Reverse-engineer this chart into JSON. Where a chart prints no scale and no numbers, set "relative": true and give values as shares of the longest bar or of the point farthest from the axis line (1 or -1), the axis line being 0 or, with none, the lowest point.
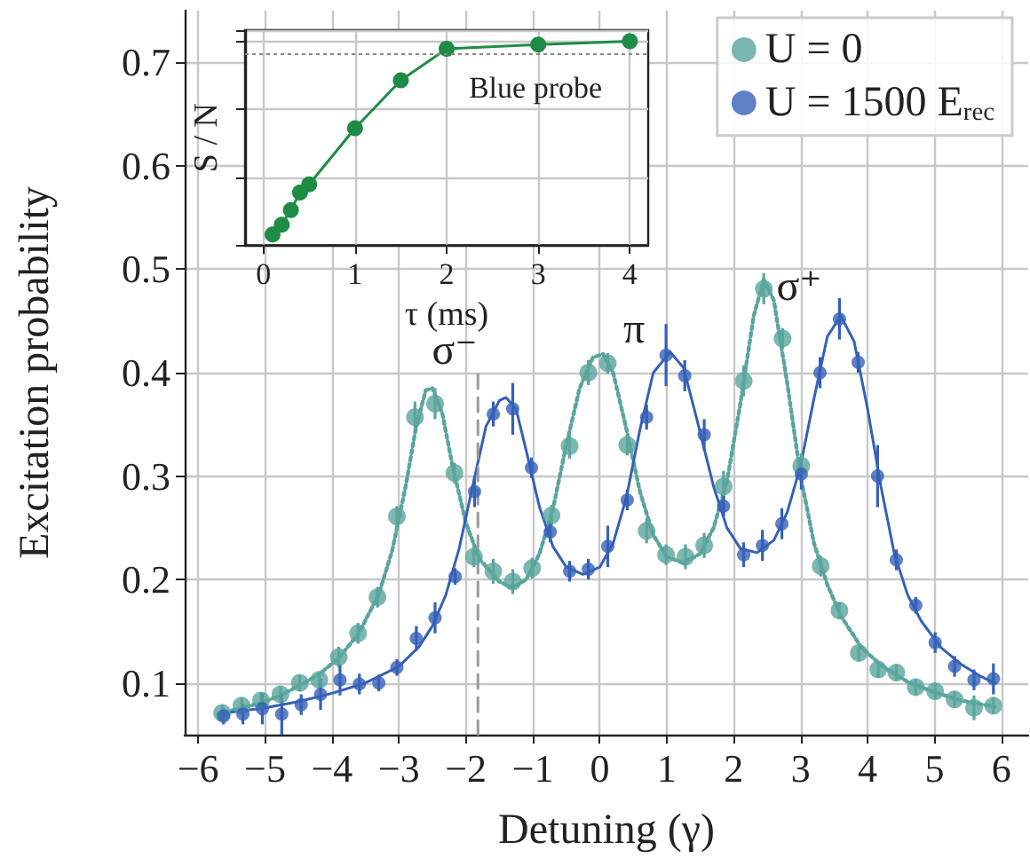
{
  "chart_data": [
    {
      "type": "scatter",
      "xlabel": "Detuning (γ)",
      "ylabel": "Excitation probability",
      "xlim": [
        -6.2,
        6.4
      ],
      "ylim": [
        0.05,
        0.75
      ],
      "xticks": [
        {
          "value": -6,
          "label": "−6"
        },
        {
          "value": -5,
          "label": "−5"
        },
        {
          "value": -4,
          "label": "−4"
        },
        {
          "value": -3,
          "label": "−3"
        },
        {
          "value": -2,
          "label": "−2"
        },
        {
          "value": -1,
          "label": "−1"
        },
        0,
        1,
        2,
        3,
        4,
        5,
        6
      ],
      "yticks": [
        0.1,
        0.2,
        0.3,
        0.4,
        0.5,
        0.6,
        0.7
      ],
      "grid": true,
      "legend": "top right",
      "marker": "circle",
      "annotations": [
        "σ⁻",
        "π",
        "σ⁺"
      ],
      "series": [
        {
          "name": "U = 0",
          "color": "#5aa59e",
          "x": [
            -5.64,
            -5.35,
            -5.06,
            -4.77,
            -4.48,
            -4.19,
            -3.9,
            -3.61,
            -3.32,
            -3.03,
            -2.76,
            -2.46,
            -2.17,
            -1.88,
            -1.59,
            -1.3,
            -1.01,
            -0.72,
            -0.45,
            -0.17,
            0.12,
            0.41,
            0.7,
            0.99,
            1.28,
            1.56,
            1.85,
            2.15,
            2.45,
            2.73,
            3.01,
            3.3,
            3.58,
            3.87,
            4.16,
            4.43,
            4.72,
            5.01,
            5.3,
            5.59,
            5.88
          ],
          "values": [
            0.071,
            0.078,
            0.083,
            0.089,
            0.1,
            0.103,
            0.125,
            0.148,
            0.183,
            0.261,
            0.357,
            0.37,
            0.303,
            0.222,
            0.208,
            0.198,
            0.211,
            0.262,
            0.329,
            0.4,
            0.409,
            0.33,
            0.247,
            0.224,
            0.222,
            0.233,
            0.29,
            0.392,
            0.481,
            0.433,
            0.31,
            0.213,
            0.17,
            0.129,
            0.113,
            0.11,
            0.096,
            0.092,
            0.084,
            0.076,
            0.078
          ],
          "errors": [
            0.008,
            0.008,
            0.008,
            0.008,
            0.008,
            0.008,
            0.01,
            0.01,
            0.01,
            0.01,
            0.015,
            0.015,
            0.01,
            0.01,
            0.012,
            0.012,
            0.01,
            0.01,
            0.012,
            0.012,
            0.01,
            0.01,
            0.012,
            0.01,
            0.012,
            0.012,
            0.015,
            0.015,
            0.015,
            0.01,
            0.012,
            0.01,
            0.008,
            0.008,
            0.008,
            0.008,
            0.008,
            0.008,
            0.008,
            0.012,
            0.008
          ]
        },
        {
          "name": "U = 1500 E$_{rec}$",
          "color": "#3560b8",
          "x": [
            -5.62,
            -5.33,
            -5.04,
            -4.75,
            -4.46,
            -4.17,
            -3.88,
            -3.59,
            -3.3,
            -3.03,
            -2.74,
            -2.46,
            -2.16,
            -1.87,
            -1.59,
            -1.3,
            -1.02,
            -0.74,
            -0.45,
            -0.17,
            0.12,
            0.41,
            0.7,
            0.99,
            1.27,
            1.56,
            1.85,
            2.15,
            2.43,
            2.72,
            3.01,
            3.29,
            3.58,
            3.86,
            4.15,
            4.43,
            4.72,
            5.01,
            5.3,
            5.59,
            5.88
          ],
          "values": [
            0.068,
            0.07,
            0.075,
            0.07,
            0.079,
            0.089,
            0.103,
            0.099,
            0.1,
            0.115,
            0.143,
            0.163,
            0.203,
            0.285,
            0.36,
            0.365,
            0.308,
            0.246,
            0.208,
            0.21,
            0.232,
            0.277,
            0.357,
            0.417,
            0.397,
            0.34,
            0.271,
            0.224,
            0.233,
            0.254,
            0.302,
            0.4,
            0.452,
            0.41,
            0.3,
            0.219,
            0.175,
            0.139,
            0.116,
            0.103,
            0.104
          ],
          "errors": [
            0.008,
            0.01,
            0.015,
            0.02,
            0.01,
            0.015,
            0.015,
            0.01,
            0.008,
            0.008,
            0.012,
            0.015,
            0.008,
            0.015,
            0.012,
            0.025,
            0.01,
            0.01,
            0.01,
            0.01,
            0.02,
            0.01,
            0.012,
            0.03,
            0.015,
            0.015,
            0.01,
            0.012,
            0.015,
            0.015,
            0.015,
            0.015,
            0.02,
            0.01,
            0.03,
            0.01,
            0.008,
            0.01,
            0.01,
            0.01,
            0.015
          ]
        },
        {
          "type": "line",
          "color": "#5aa59e",
          "line_style": "dotted",
          "marker": "none",
          "x": [
            -5.7,
            -5.4,
            -5.1,
            -4.8,
            -4.5,
            -4.2,
            -3.9,
            -3.6,
            -3.3,
            -3.1,
            -2.9,
            -2.75,
            -2.6,
            -2.5,
            -2.35,
            -2.2,
            -2.0,
            -1.8,
            -1.5,
            -1.3,
            -1.1,
            -0.9,
            -0.7,
            -0.5,
            -0.3,
            -0.1,
            0.05,
            0.2,
            0.4,
            0.6,
            0.8,
            1.0,
            1.25,
            1.5,
            1.7,
            1.9,
            2.1,
            2.3,
            2.45,
            2.6,
            2.8,
            3.0,
            3.2,
            3.4,
            3.6,
            3.9,
            4.2,
            4.6,
            5.0,
            5.4,
            5.9
          ],
          "values": [
            0.07,
            0.075,
            0.08,
            0.087,
            0.097,
            0.108,
            0.124,
            0.148,
            0.186,
            0.228,
            0.29,
            0.345,
            0.383,
            0.385,
            0.36,
            0.31,
            0.255,
            0.22,
            0.198,
            0.192,
            0.2,
            0.225,
            0.268,
            0.33,
            0.385,
            0.415,
            0.418,
            0.4,
            0.345,
            0.285,
            0.243,
            0.222,
            0.216,
            0.225,
            0.25,
            0.295,
            0.37,
            0.455,
            0.49,
            0.47,
            0.39,
            0.3,
            0.235,
            0.195,
            0.165,
            0.135,
            0.117,
            0.101,
            0.091,
            0.083,
            0.077
          ]
        },
        {
          "type": "line",
          "color": "#3560b8",
          "line_style": "solid",
          "marker": "none",
          "x": [
            -5.6,
            -5.0,
            -4.5,
            -4.0,
            -3.5,
            -3.0,
            -2.7,
            -2.5,
            -2.3,
            -2.1,
            -1.9,
            -1.7,
            -1.5,
            -1.4,
            -1.25,
            -1.1,
            -0.9,
            -0.7,
            -0.5,
            -0.25,
            0.0,
            0.2,
            0.4,
            0.6,
            0.8,
            1.05,
            1.25,
            1.45,
            1.7,
            1.9,
            2.1,
            2.35,
            2.6,
            2.8,
            3.0,
            3.2,
            3.4,
            3.6,
            3.8,
            4.0,
            4.2,
            4.4,
            4.6,
            4.8,
            5.1,
            5.4,
            5.7,
            5.9
          ],
          "values": [
            0.071,
            0.076,
            0.082,
            0.09,
            0.1,
            0.116,
            0.135,
            0.155,
            0.185,
            0.23,
            0.29,
            0.348,
            0.373,
            0.376,
            0.365,
            0.325,
            0.27,
            0.232,
            0.212,
            0.205,
            0.212,
            0.235,
            0.28,
            0.345,
            0.4,
            0.42,
            0.405,
            0.355,
            0.29,
            0.25,
            0.23,
            0.226,
            0.238,
            0.265,
            0.31,
            0.375,
            0.435,
            0.455,
            0.43,
            0.365,
            0.29,
            0.225,
            0.185,
            0.16,
            0.134,
            0.118,
            0.106,
            0.1
          ]
        },
        {
          "type": "line",
          "color": "#999999",
          "line_style": "dashed",
          "marker": "none",
          "x": [
            -1.82,
            -1.82
          ],
          "values": [
            0.05,
            0.4
          ]
        }
      ]
    },
    {
      "type": "line",
      "relative": true,
      "xlabel": "τ (ms)",
      "ylabel": "S / N",
      "xlim": [
        -0.2,
        4.2
      ],
      "xticks": [
        0,
        1,
        2,
        3,
        4
      ],
      "grid": true,
      "marker": "circle",
      "tick_labels": "x",
      "ref_lines": [
        {
          "axis": "y",
          "value": 0.94,
          "label": "Blue probe",
          "color": "#888888",
          "line_style": "dotted"
        }
      ],
      "series": [
        {
          "color": "#1e8c45",
          "x": [
            0.1,
            0.2,
            0.3,
            0.4,
            0.5,
            1,
            1.5,
            2,
            3,
            4
          ],
          "values": [
            0.052,
            0.1,
            0.172,
            0.258,
            0.298,
            0.573,
            0.808,
            0.963,
            0.983,
            1
          ]
        }
      ]
    }
  ]
}
